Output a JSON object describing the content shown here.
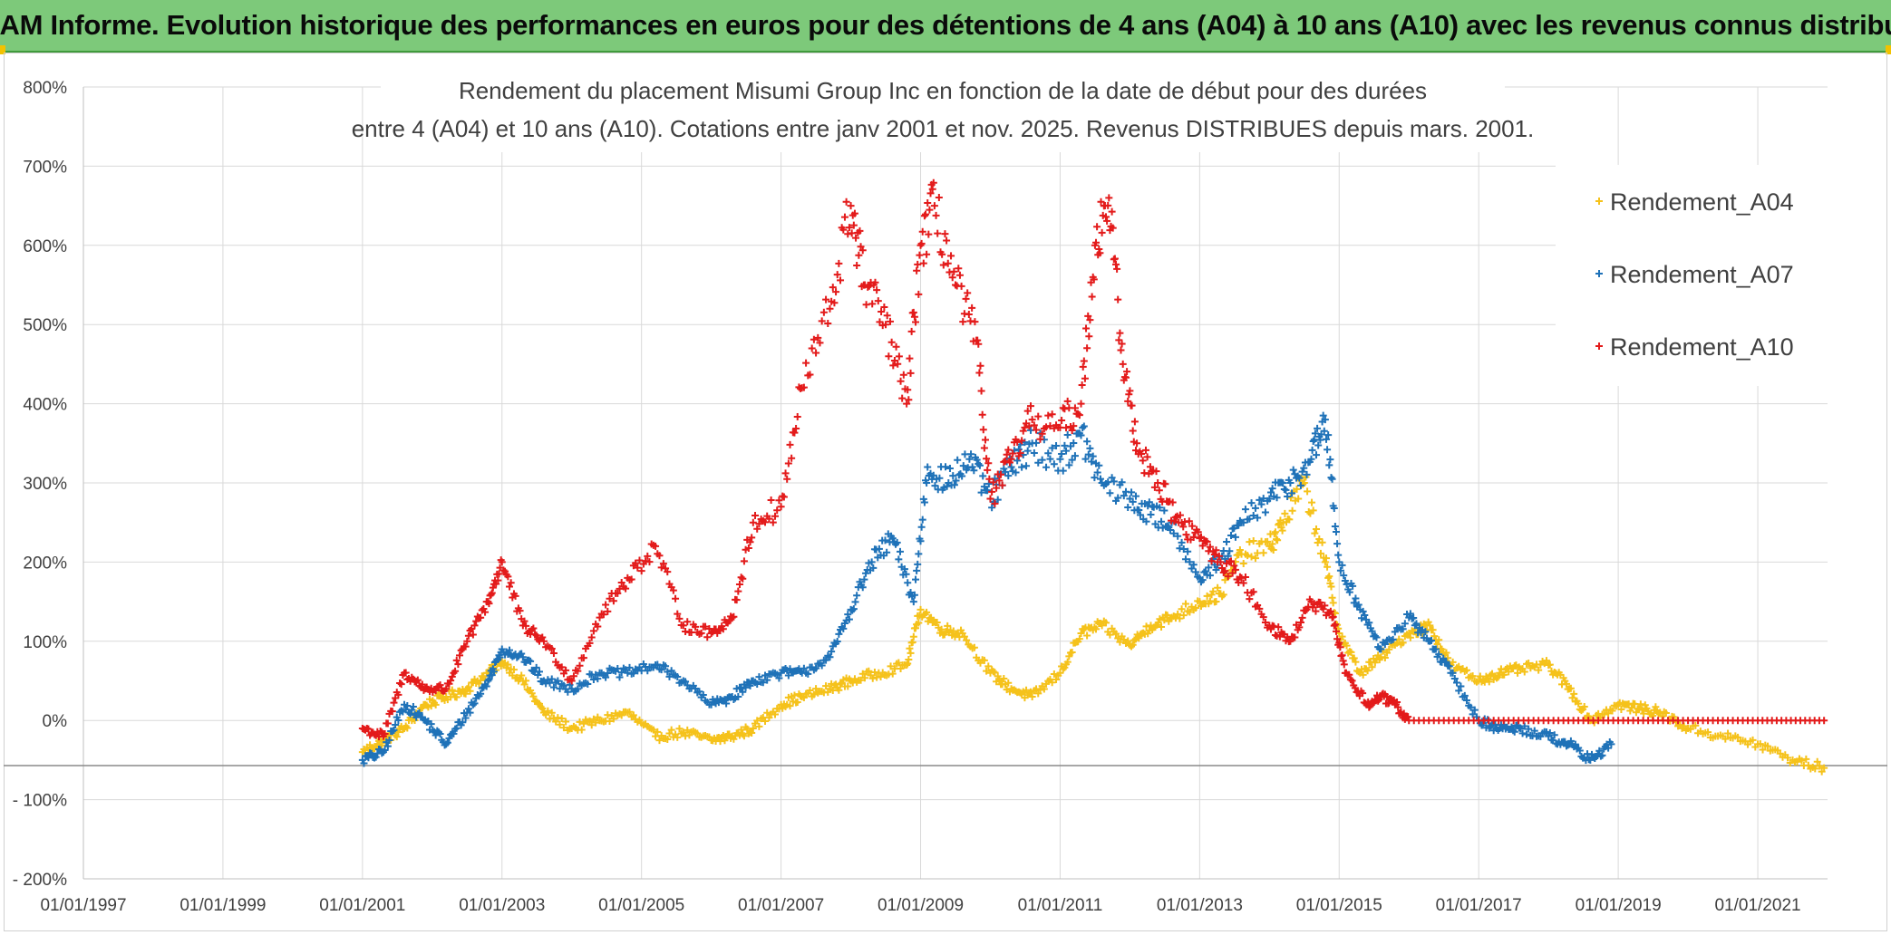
{
  "banner": {
    "text": "ADAM Informe. Evolution historique des performances en euros pour des détentions de 4 ans (A04) à 10 ans (A10) avec les revenus connus distribués"
  },
  "chart_data": {
    "type": "scatter",
    "title_line1": "Rendement du placement Misumi Group Inc en fonction de la date de début pour des durées",
    "title_line2": "entre 4 (A04) et 10 ans (A10). Cotations entre janv 2001 et nov. 2025. Revenus DISTRIBUES depuis mars. 2001.",
    "xlabel": "",
    "ylabel": "",
    "xlim": [
      1997.0,
      2022.0
    ],
    "ylim": [
      -200,
      800
    ],
    "y_ticks": [
      "800%",
      "700%",
      "600%",
      "500%",
      "400%",
      "300%",
      "200%",
      "100%",
      "0%",
      "- 100%",
      "- 200%"
    ],
    "y_tick_values": [
      800,
      700,
      600,
      500,
      400,
      300,
      200,
      100,
      0,
      -100,
      -200
    ],
    "x_ticks": [
      "01/01/1997",
      "01/01/1999",
      "01/01/2001",
      "01/01/2003",
      "01/01/2005",
      "01/01/2007",
      "01/01/2009",
      "01/01/2011",
      "01/01/2013",
      "01/01/2015",
      "01/01/2017",
      "01/01/2019",
      "01/01/2021"
    ],
    "x_tick_values": [
      1997,
      1999,
      2001,
      2003,
      2005,
      2007,
      2009,
      2011,
      2013,
      2015,
      2017,
      2019,
      2021
    ],
    "grid": true,
    "marker": "+",
    "legend_position": "right",
    "series": [
      {
        "name": "Rendement_A04",
        "color": "#f5c21b",
        "x": [
          2001.0,
          2001.3,
          2001.6,
          2001.9,
          2002.2,
          2002.5,
          2002.8,
          2003.0,
          2003.3,
          2003.6,
          2004.0,
          2004.4,
          2004.8,
          2005.2,
          2005.6,
          2006.0,
          2006.3,
          2006.6,
          2007.0,
          2007.3,
          2007.7,
          2008.0,
          2008.4,
          2008.8,
          2009.0,
          2009.3,
          2009.6,
          2010.0,
          2010.3,
          2010.6,
          2011.0,
          2011.3,
          2011.6,
          2012.0,
          2012.3,
          2012.6,
          2013.0,
          2013.3,
          2013.6,
          2014.0,
          2014.2,
          2014.5,
          2014.8,
          2015.0,
          2015.3,
          2015.6,
          2016.0,
          2016.3,
          2016.6,
          2017.0,
          2017.3,
          2017.6,
          2018.0,
          2018.3,
          2018.6,
          2019.0,
          2019.3,
          2019.6,
          2020.0,
          2020.5,
          2021.0,
          2021.5,
          2021.95
        ],
        "y": [
          -40,
          -25,
          -10,
          20,
          30,
          40,
          60,
          75,
          50,
          10,
          -10,
          0,
          10,
          -20,
          -15,
          -25,
          -20,
          -10,
          20,
          30,
          40,
          50,
          60,
          70,
          140,
          115,
          110,
          60,
          40,
          30,
          60,
          110,
          120,
          95,
          120,
          130,
          150,
          160,
          210,
          220,
          250,
          300,
          200,
          110,
          60,
          80,
          110,
          120,
          70,
          50,
          60,
          65,
          70,
          40,
          0,
          20,
          15,
          10,
          -10,
          -20,
          -30,
          -50,
          -60
        ]
      },
      {
        "name": "Rendement_A07",
        "color": "#1f72b8",
        "x": [
          2001.0,
          2001.3,
          2001.6,
          2001.9,
          2002.2,
          2002.5,
          2002.8,
          2003.0,
          2003.3,
          2003.6,
          2004.0,
          2004.4,
          2004.8,
          2005.2,
          2005.6,
          2006.0,
          2006.3,
          2006.6,
          2007.0,
          2007.3,
          2007.7,
          2008.0,
          2008.3,
          2008.6,
          2008.9,
          2009.1,
          2009.4,
          2009.7,
          2010.0,
          2010.3,
          2010.6,
          2011.0,
          2011.3,
          2011.6,
          2012.0,
          2012.3,
          2012.6,
          2013.0,
          2013.3,
          2013.6,
          2014.0,
          2014.3,
          2014.6,
          2014.8,
          2015.0,
          2015.3,
          2015.6,
          2016.0,
          2016.3,
          2016.6,
          2017.0,
          2017.3,
          2017.6,
          2018.0,
          2018.3,
          2018.6,
          2018.9
        ],
        "y": [
          -50,
          -40,
          20,
          0,
          -30,
          10,
          50,
          90,
          80,
          50,
          40,
          60,
          60,
          70,
          50,
          20,
          30,
          50,
          60,
          60,
          80,
          140,
          200,
          230,
          150,
          320,
          300,
          330,
          280,
          320,
          350,
          330,
          360,
          300,
          280,
          260,
          250,
          180,
          200,
          250,
          280,
          300,
          330,
          380,
          200,
          140,
          90,
          130,
          100,
          60,
          0,
          -10,
          -10,
          -20,
          -30,
          -50,
          -30
        ]
      },
      {
        "name": "Rendement_A10",
        "color": "#e31b1b",
        "x": [
          2001.0,
          2001.3,
          2001.6,
          2001.9,
          2002.2,
          2002.5,
          2002.8,
          2003.0,
          2003.3,
          2003.6,
          2004.0,
          2004.4,
          2004.8,
          2005.2,
          2005.6,
          2006.0,
          2006.3,
          2006.6,
          2007.0,
          2007.3,
          2007.7,
          2008.0,
          2008.2,
          2008.5,
          2008.8,
          2009.0,
          2009.2,
          2009.5,
          2009.8,
          2010.0,
          2010.3,
          2010.6,
          2011.0,
          2011.3,
          2011.5,
          2011.7,
          2011.9,
          2012.1,
          2012.4,
          2012.7,
          2013.0,
          2013.3,
          2013.6,
          2014.0,
          2014.3,
          2014.6,
          2014.9,
          2015.1,
          2015.4,
          2015.6,
          2015.8,
          2016.0,
          2017.0,
          2018.0,
          2019.0,
          2020.0,
          2021.0,
          2021.95
        ],
        "y": [
          -10,
          -20,
          60,
          40,
          40,
          100,
          150,
          200,
          120,
          100,
          50,
          130,
          180,
          220,
          120,
          110,
          130,
          250,
          270,
          420,
          520,
          650,
          550,
          500,
          400,
          600,
          650,
          550,
          480,
          280,
          330,
          380,
          370,
          400,
          600,
          660,
          450,
          350,
          300,
          250,
          230,
          200,
          180,
          120,
          100,
          150,
          130,
          60,
          20,
          30,
          20,
          0,
          0,
          0,
          0,
          0,
          0,
          0
        ]
      }
    ]
  }
}
